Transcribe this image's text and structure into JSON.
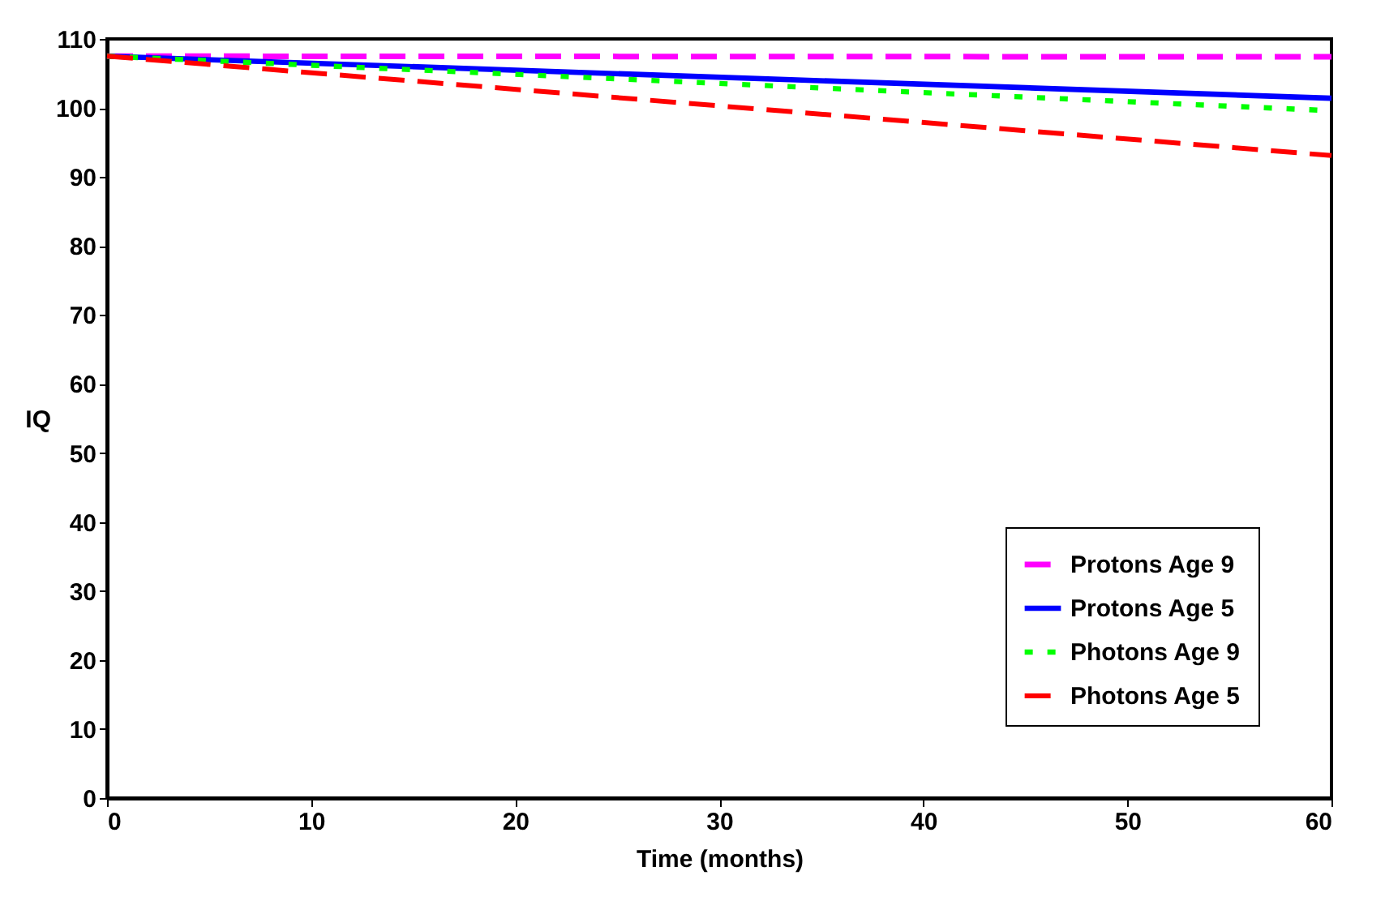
{
  "chart_data": {
    "type": "line",
    "xlabel": "Time (months)",
    "ylabel": "IQ",
    "x": [
      0,
      60
    ],
    "xlim": [
      0,
      60
    ],
    "xticks": [
      0,
      10,
      20,
      30,
      40,
      50,
      60
    ],
    "ylim": [
      0,
      110
    ],
    "yticks": [
      0,
      10,
      20,
      30,
      40,
      50,
      60,
      70,
      80,
      90,
      100,
      110
    ],
    "grid": false,
    "legend": "bottom right",
    "marker": "none",
    "series": [
      {
        "name": "Protons Age 9",
        "color": "#ff00ff",
        "line_style": "dashed",
        "values": [
          107.5,
          107.4
        ]
      },
      {
        "name": "Protons Age 5",
        "color": "#0000ff",
        "line_style": "solid",
        "values": [
          107.5,
          101.4
        ]
      },
      {
        "name": "Photons Age 9",
        "color": "#00ff00",
        "line_style": "dotted",
        "values": [
          107.5,
          99.6
        ]
      },
      {
        "name": "Photons Age 5",
        "color": "#ff0000",
        "line_style": "dashed",
        "values": [
          107.5,
          93.1
        ]
      }
    ]
  }
}
